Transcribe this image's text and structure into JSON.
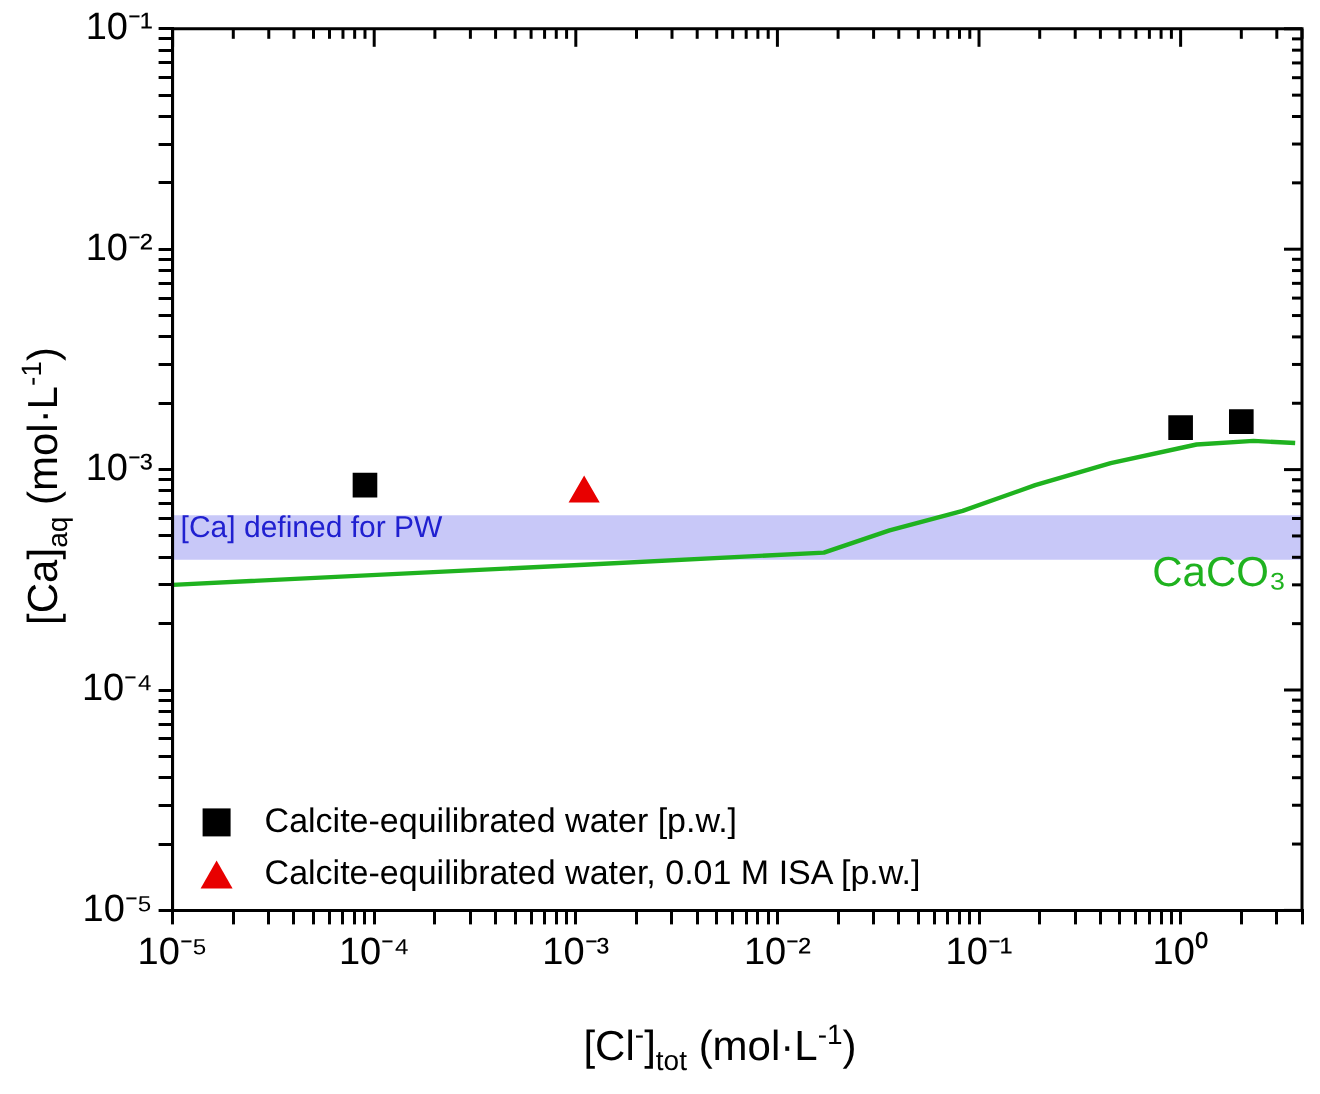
{
  "chart_data": {
    "type": "scatter",
    "xlabel": "[Cl$^{-}$]$_{tot}$ (mol·L$^{-1}$)",
    "ylabel": "[Ca]$_{aq}$ (mol·L$^{-1}$)",
    "log": "xy",
    "grid": false,
    "legend": "bottom left",
    "xlim": [
      1e-05,
      4
    ],
    "ylim": [
      1e-05,
      0.1
    ],
    "xticks": [
      {
        "value": 1e-05,
        "label": "10⁻⁵"
      },
      {
        "value": 2e-05,
        "label": null
      },
      {
        "value": 3e-05,
        "label": null
      },
      {
        "value": 4e-05,
        "label": null
      },
      {
        "value": 5e-05,
        "label": null
      },
      {
        "value": 6e-05,
        "label": null
      },
      {
        "value": 7e-05,
        "label": null
      },
      {
        "value": 8e-05,
        "label": null
      },
      {
        "value": 9e-05,
        "label": null
      },
      {
        "value": 0.0001,
        "label": "10⁻⁴"
      },
      {
        "value": 0.0002,
        "label": null
      },
      {
        "value": 0.0003,
        "label": null
      },
      {
        "value": 0.0004,
        "label": null
      },
      {
        "value": 0.0005,
        "label": null
      },
      {
        "value": 0.0006,
        "label": null
      },
      {
        "value": 0.0007,
        "label": null
      },
      {
        "value": 0.0008,
        "label": null
      },
      {
        "value": 0.0009,
        "label": null
      },
      {
        "value": 0.001,
        "label": "10⁻³"
      },
      {
        "value": 0.002,
        "label": null
      },
      {
        "value": 0.003,
        "label": null
      },
      {
        "value": 0.004,
        "label": null
      },
      {
        "value": 0.005,
        "label": null
      },
      {
        "value": 0.006,
        "label": null
      },
      {
        "value": 0.007,
        "label": null
      },
      {
        "value": 0.008,
        "label": null
      },
      {
        "value": 0.009,
        "label": null
      },
      {
        "value": 0.01,
        "label": "10⁻²"
      },
      {
        "value": 0.02,
        "label": null
      },
      {
        "value": 0.03,
        "label": null
      },
      {
        "value": 0.04,
        "label": null
      },
      {
        "value": 0.05,
        "label": null
      },
      {
        "value": 0.06,
        "label": null
      },
      {
        "value": 0.07,
        "label": null
      },
      {
        "value": 0.08,
        "label": null
      },
      {
        "value": 0.09,
        "label": null
      },
      {
        "value": 0.1,
        "label": "10⁻¹"
      },
      {
        "value": 0.2,
        "label": null
      },
      {
        "value": 0.3,
        "label": null
      },
      {
        "value": 0.4,
        "label": null
      },
      {
        "value": 0.5,
        "label": null
      },
      {
        "value": 0.6,
        "label": null
      },
      {
        "value": 0.7,
        "label": null
      },
      {
        "value": 0.8,
        "label": null
      },
      {
        "value": 0.9,
        "label": null
      },
      {
        "value": 1,
        "label": "10⁰"
      },
      {
        "value": 2,
        "label": null
      },
      {
        "value": 3,
        "label": null
      },
      {
        "value": 4,
        "label": null
      }
    ],
    "yticks": [
      {
        "value": 1e-05,
        "label": "10⁻⁵"
      },
      {
        "value": 2e-05,
        "label": null
      },
      {
        "value": 3e-05,
        "label": null
      },
      {
        "value": 4e-05,
        "label": null
      },
      {
        "value": 5e-05,
        "label": null
      },
      {
        "value": 6e-05,
        "label": null
      },
      {
        "value": 7e-05,
        "label": null
      },
      {
        "value": 8e-05,
        "label": null
      },
      {
        "value": 9e-05,
        "label": null
      },
      {
        "value": 0.0001,
        "label": "10⁻⁴"
      },
      {
        "value": 0.0002,
        "label": null
      },
      {
        "value": 0.0003,
        "label": null
      },
      {
        "value": 0.0004,
        "label": null
      },
      {
        "value": 0.0005,
        "label": null
      },
      {
        "value": 0.0006,
        "label": null
      },
      {
        "value": 0.0007,
        "label": null
      },
      {
        "value": 0.0008,
        "label": null
      },
      {
        "value": 0.0009,
        "label": null
      },
      {
        "value": 0.001,
        "label": "10⁻³"
      },
      {
        "value": 0.002,
        "label": null
      },
      {
        "value": 0.003,
        "label": null
      },
      {
        "value": 0.004,
        "label": null
      },
      {
        "value": 0.005,
        "label": null
      },
      {
        "value": 0.006,
        "label": null
      },
      {
        "value": 0.007,
        "label": null
      },
      {
        "value": 0.008,
        "label": null
      },
      {
        "value": 0.009,
        "label": null
      },
      {
        "value": 0.01,
        "label": "10⁻²"
      },
      {
        "value": 0.02,
        "label": null
      },
      {
        "value": 0.03,
        "label": null
      },
      {
        "value": 0.04,
        "label": null
      },
      {
        "value": 0.05,
        "label": null
      },
      {
        "value": 0.06,
        "label": null
      },
      {
        "value": 0.07,
        "label": null
      },
      {
        "value": 0.08,
        "label": null
      },
      {
        "value": 0.09,
        "label": null
      },
      {
        "value": 0.1,
        "label": "10⁻¹"
      }
    ],
    "bands": [
      {
        "axis": "y",
        "from": 0.00039,
        "to": 0.00062,
        "label": "[Ca] defined for PW",
        "color": "#c8c8f8"
      }
    ],
    "series": [
      {
        "name": "CaCO₃",
        "type": "line",
        "color": "#1fb21f",
        "marker": "none",
        "line_style": "solid",
        "x": [
          1e-05,
          0.0011,
          0.017,
          0.036,
          0.083,
          0.19,
          0.45,
          1.2,
          2.3,
          3.7
        ],
        "values": [
          0.0003,
          0.00037,
          0.00042,
          0.00053,
          0.00065,
          0.00085,
          0.00107,
          0.0013,
          0.00135,
          0.00132
        ]
      },
      {
        "name": "Calcite-equilibrated water [p.w.]",
        "type": "scatter",
        "color": "#000000",
        "marker": "square",
        "x": [
          9e-05,
          1.0,
          2.0
        ],
        "values": [
          0.00085,
          0.00155,
          0.00165
        ]
      },
      {
        "name": "Calcite-equilibrated water, 0.01 M ISA [p.w.]",
        "type": "scatter",
        "color": "#e80000",
        "marker": "triangle",
        "x": [
          0.0011
        ],
        "values": [
          0.00078
        ]
      }
    ]
  }
}
